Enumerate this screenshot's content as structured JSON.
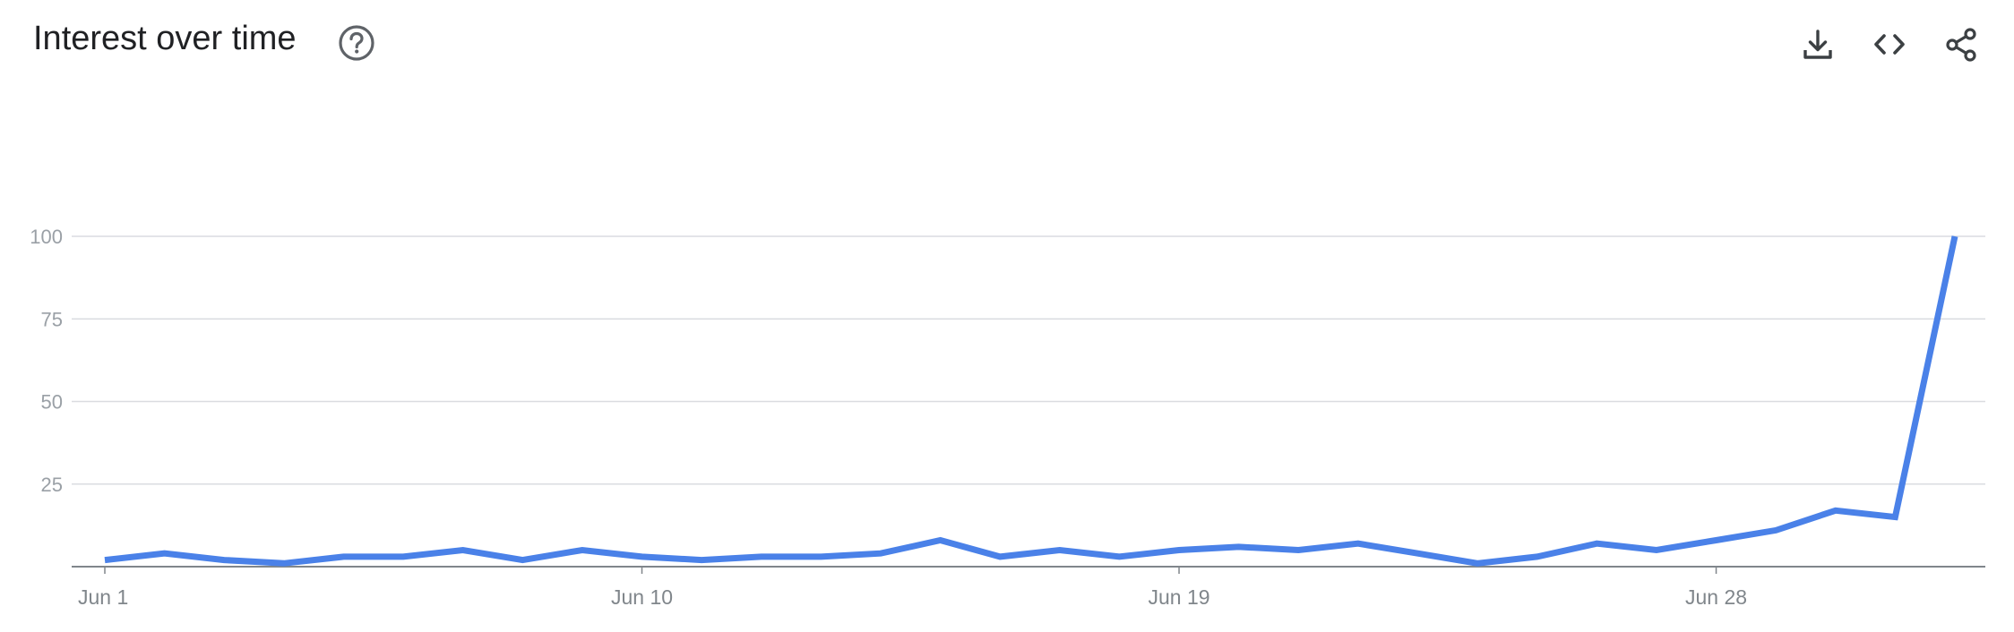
{
  "header": {
    "title": "Interest over time",
    "help_icon": "help-circle-icon",
    "actions": [
      {
        "name": "download",
        "icon": "download-icon"
      },
      {
        "name": "embed",
        "icon": "code-icon"
      },
      {
        "name": "share",
        "icon": "share-icon"
      }
    ]
  },
  "colors": {
    "series": "#4a81e8",
    "grid": "#dadce0",
    "axis": "#80868b",
    "title": "#202124",
    "icon": "#3c4043"
  },
  "chart_data": {
    "type": "line",
    "title": "Interest over time",
    "xlabel": "",
    "ylabel": "",
    "ylim": [
      0,
      100
    ],
    "yticks": [
      25,
      50,
      75,
      100
    ],
    "grid": true,
    "x": [
      "Jun 1",
      "Jun 2",
      "Jun 3",
      "Jun 4",
      "Jun 5",
      "Jun 6",
      "Jun 7",
      "Jun 8",
      "Jun 9",
      "Jun 10",
      "Jun 11",
      "Jun 12",
      "Jun 13",
      "Jun 14",
      "Jun 15",
      "Jun 16",
      "Jun 17",
      "Jun 18",
      "Jun 19",
      "Jun 20",
      "Jun 21",
      "Jun 22",
      "Jun 23",
      "Jun 24",
      "Jun 25",
      "Jun 26",
      "Jun 27",
      "Jun 28",
      "Jun 29",
      "Jun 30",
      "Jul 1",
      "Jul 2"
    ],
    "x_tick_labels": [
      "Jun 1",
      "Jun 10",
      "Jun 19",
      "Jun 28"
    ],
    "series": [
      {
        "values": [
          2,
          4,
          2,
          1,
          3,
          3,
          5,
          2,
          5,
          3,
          2,
          3,
          3,
          4,
          8,
          3,
          5,
          3,
          5,
          6,
          5,
          7,
          4,
          1,
          3,
          7,
          5,
          8,
          11,
          17,
          15,
          100
        ]
      }
    ]
  }
}
